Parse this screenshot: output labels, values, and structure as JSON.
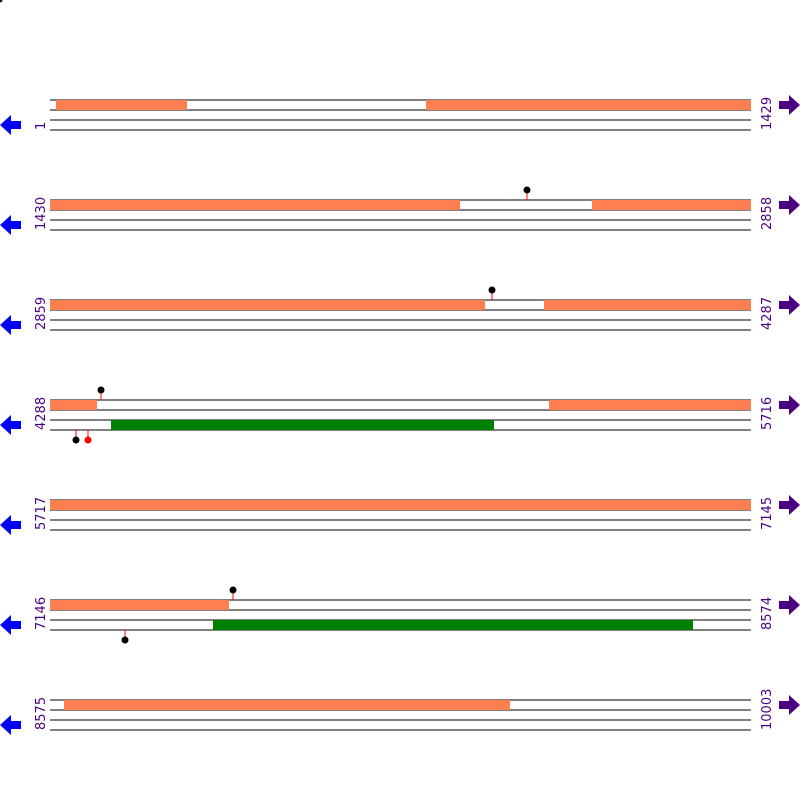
{
  "colors": {
    "orf": "#ff7f50",
    "gene": "#008000",
    "line": "#000000",
    "stem": "#ff0000",
    "site": "#000000",
    "site_alt": "#ff0000",
    "left_arrow": "#0000ff",
    "right_arrow": "#4b0082",
    "label": "#4b0082"
  },
  "icons": {
    "left": "arrow-left-icon",
    "right": "arrow-right-icon"
  },
  "rows": [
    {
      "start": "1",
      "end": "1429",
      "from": 1,
      "to": 1429,
      "top": [
        [
          56,
          187
        ],
        [
          426,
          751
        ]
      ],
      "bottom": [],
      "markers": []
    },
    {
      "start": "1430",
      "end": "2858",
      "from": 1430,
      "to": 2858,
      "top": [
        [
          50,
          460
        ],
        [
          592,
          751
        ]
      ],
      "bottom": [],
      "markers": [
        {
          "x": 527,
          "side": "top",
          "color": "site"
        }
      ]
    },
    {
      "start": "2859",
      "end": "4287",
      "from": 2859,
      "to": 4287,
      "top": [
        [
          50,
          485
        ],
        [
          544,
          751
        ]
      ],
      "bottom": [],
      "markers": [
        {
          "x": 492,
          "side": "top",
          "color": "site"
        }
      ]
    },
    {
      "start": "4288",
      "end": "5716",
      "from": 4288,
      "to": 5716,
      "top": [
        [
          50,
          97
        ],
        [
          549,
          751
        ]
      ],
      "bottom": [
        [
          111,
          494
        ]
      ],
      "markers": [
        {
          "x": 101,
          "side": "top",
          "color": "site"
        },
        {
          "x": 76,
          "side": "bottom",
          "color": "site"
        },
        {
          "x": 88,
          "side": "bottom",
          "color": "site_alt"
        }
      ]
    },
    {
      "start": "5717",
      "end": "7145",
      "from": 5717,
      "to": 7145,
      "top": [
        [
          50,
          751
        ]
      ],
      "bottom": [],
      "markers": []
    },
    {
      "start": "7146",
      "end": "8574",
      "from": 7146,
      "to": 8574,
      "top": [
        [
          50,
          229
        ]
      ],
      "bottom": [
        [
          213,
          693
        ]
      ],
      "markers": [
        {
          "x": 233,
          "side": "top",
          "color": "site"
        },
        {
          "x": 125,
          "side": "bottom",
          "color": "site"
        }
      ]
    },
    {
      "start": "8575",
      "end": "10003",
      "from": 8575,
      "to": 10003,
      "top": [
        [
          64,
          510
        ]
      ],
      "bottom": [],
      "markers": []
    }
  ]
}
